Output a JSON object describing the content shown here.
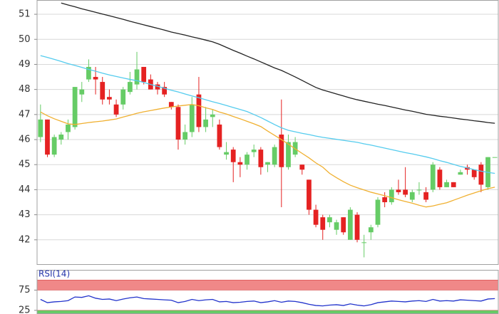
{
  "chart_data": [
    {
      "type": "candlestick",
      "up_color": "#66cc66",
      "down_color": "#e52222",
      "grid": true,
      "ylim": [
        41.0,
        51.57
      ],
      "yticks": [
        42,
        43,
        44,
        45,
        46,
        47,
        48,
        49,
        50,
        51
      ],
      "open": [
        46.1,
        46.8,
        45.4,
        46.0,
        46.3,
        46.5,
        47.8,
        48.4,
        48.5,
        48.3,
        47.7,
        47.4,
        47.4,
        47.9,
        48.2,
        48.9,
        48.4,
        48.2,
        48.1,
        47.5,
        47.3,
        46.0,
        46.3,
        47.8,
        46.5,
        46.9,
        46.6,
        45.4,
        45.6,
        45.1,
        45.0,
        45.5,
        45.6,
        45.0,
        45.0,
        46.2,
        44.9,
        45.4,
        45.0,
        44.4,
        43.2,
        42.9,
        42.7,
        42.4,
        42.9,
        42.0,
        43.0,
        41.9,
        42.3,
        42.6,
        43.7,
        43.5,
        44.0,
        44.0,
        43.6,
        44.0,
        43.9,
        44.0,
        44.8,
        44.1,
        44.3,
        44.6,
        44.9,
        44.8,
        45.0,
        44.1,
        45.3
      ],
      "high": [
        47.4,
        46.8,
        46.2,
        46.3,
        46.8,
        48.1,
        48.3,
        49.2,
        48.9,
        48.5,
        48.0,
        47.6,
        48.1,
        48.7,
        49.5,
        48.9,
        48.6,
        48.3,
        48.3,
        47.5,
        47.4,
        46.6,
        47.7,
        48.5,
        47.3,
        47.2,
        46.8,
        45.9,
        45.7,
        45.3,
        45.5,
        45.8,
        45.7,
        45.1,
        45.8,
        47.6,
        46.2,
        46.1,
        45.0,
        44.4,
        43.4,
        43.0,
        43.0,
        42.8,
        42.9,
        43.3,
        43.1,
        42.2,
        42.6,
        43.7,
        43.9,
        44.1,
        44.4,
        44.9,
        44.0,
        44.3,
        44.1,
        45.1,
        44.9,
        44.4,
        44.3,
        44.8,
        45.0,
        44.8,
        45.1,
        45.3,
        45.3
      ],
      "low": [
        45.9,
        45.3,
        45.3,
        45.8,
        46.0,
        46.4,
        47.5,
        48.3,
        47.8,
        47.4,
        47.4,
        46.9,
        47.2,
        47.8,
        48.0,
        48.2,
        48.0,
        47.8,
        47.7,
        47.2,
        45.6,
        45.8,
        46.1,
        46.3,
        46.3,
        46.5,
        45.6,
        45.2,
        44.3,
        44.5,
        44.8,
        45.3,
        44.6,
        44.7,
        44.9,
        43.3,
        44.8,
        45.3,
        44.6,
        43.0,
        42.5,
        42.0,
        42.5,
        42.2,
        42.2,
        42.0,
        41.9,
        41.3,
        42.0,
        42.5,
        43.3,
        43.4,
        43.8,
        43.7,
        43.5,
        43.8,
        43.5,
        43.9,
        44.0,
        44.1,
        44.1,
        44.6,
        44.6,
        44.4,
        43.9,
        44.0,
        45.3
      ],
      "close": [
        46.8,
        45.4,
        46.1,
        46.2,
        46.6,
        48.1,
        48.0,
        48.9,
        48.4,
        47.6,
        47.6,
        47.0,
        48.0,
        48.3,
        48.8,
        48.3,
        48.0,
        48.0,
        47.8,
        47.3,
        46.0,
        46.3,
        47.4,
        46.5,
        46.8,
        47.0,
        45.7,
        45.5,
        45.1,
        45.0,
        45.4,
        45.6,
        44.9,
        45.1,
        45.7,
        44.9,
        45.9,
        45.9,
        44.8,
        43.2,
        42.6,
        42.4,
        42.9,
        42.7,
        42.3,
        43.2,
        42.0,
        41.9,
        42.5,
        43.6,
        43.5,
        44.0,
        43.9,
        43.8,
        43.9,
        44.0,
        43.6,
        45.0,
        44.1,
        44.3,
        44.1,
        44.7,
        44.8,
        44.5,
        44.2,
        45.3,
        45.3
      ],
      "series": [
        {
          "color": "#222222",
          "values": [
            null,
            null,
            null,
            51.45,
            51.37,
            51.3,
            51.22,
            51.15,
            51.08,
            51.01,
            50.94,
            50.87,
            50.8,
            50.72,
            50.65,
            50.58,
            50.51,
            50.44,
            50.37,
            50.29,
            50.23,
            50.17,
            50.1,
            50.04,
            49.97,
            49.9,
            49.8,
            49.68,
            49.56,
            49.45,
            49.33,
            49.22,
            49.1,
            48.98,
            48.86,
            48.76,
            48.63,
            48.5,
            48.36,
            48.22,
            48.08,
            47.98,
            47.9,
            47.82,
            47.74,
            47.66,
            47.59,
            47.53,
            47.47,
            47.41,
            47.36,
            47.3,
            47.24,
            47.18,
            47.13,
            47.07,
            47.01,
            46.97,
            46.93,
            46.9,
            46.86,
            46.82,
            46.79,
            46.75,
            46.72,
            46.68,
            46.65
          ]
        },
        {
          "color": "#55ccee",
          "values": [
            49.35,
            49.28,
            49.2,
            49.12,
            49.03,
            48.96,
            48.88,
            48.8,
            48.73,
            48.65,
            48.58,
            48.52,
            48.46,
            48.4,
            48.35,
            48.28,
            48.2,
            48.13,
            48.05,
            47.97,
            47.9,
            47.82,
            47.74,
            47.67,
            47.59,
            47.51,
            47.44,
            47.36,
            47.28,
            47.2,
            47.12,
            47.0,
            46.88,
            46.74,
            46.6,
            46.47,
            46.37,
            46.31,
            46.25,
            46.2,
            46.14,
            46.09,
            46.05,
            46.01,
            45.97,
            45.93,
            45.89,
            45.83,
            45.78,
            45.72,
            45.66,
            45.6,
            45.54,
            45.48,
            45.43,
            45.37,
            45.31,
            45.24,
            45.16,
            45.09,
            45.01,
            44.93,
            44.87,
            44.8,
            44.74,
            44.69,
            44.65
          ]
        },
        {
          "color": "#f0b030",
          "values": [
            47.1,
            46.95,
            46.83,
            46.73,
            46.63,
            46.6,
            46.64,
            46.68,
            46.71,
            46.74,
            46.78,
            46.82,
            46.9,
            46.97,
            47.05,
            47.11,
            47.16,
            47.21,
            47.26,
            47.3,
            47.34,
            47.37,
            47.4,
            47.35,
            47.27,
            47.2,
            47.1,
            47.02,
            46.92,
            46.83,
            46.73,
            46.63,
            46.52,
            46.34,
            46.17,
            46.0,
            45.82,
            45.63,
            45.45,
            45.27,
            45.07,
            44.9,
            44.65,
            44.48,
            44.32,
            44.18,
            44.08,
            43.99,
            43.9,
            43.83,
            43.76,
            43.68,
            43.6,
            43.53,
            43.46,
            43.38,
            43.31,
            43.35,
            43.42,
            43.48,
            43.58,
            43.68,
            43.78,
            43.87,
            43.96,
            44.04,
            44.1
          ]
        }
      ]
    },
    {
      "type": "line",
      "title": "RSI(14)",
      "color": "#2233cc",
      "ylim": [
        16,
        125
      ],
      "yticks": [
        25,
        75
      ],
      "bands": [
        {
          "from": 75,
          "to": 100,
          "color": "#f08888"
        },
        {
          "from": 16,
          "to": 25,
          "color": "#66cc66"
        }
      ],
      "values": [
        52,
        44,
        46,
        47,
        49,
        58,
        57,
        61,
        55,
        52,
        53,
        49,
        53,
        56,
        58,
        54,
        53,
        52,
        51,
        50,
        44,
        47,
        52,
        49,
        51,
        52,
        46,
        47,
        44,
        45,
        47,
        48,
        44,
        46,
        49,
        45,
        48,
        47,
        44,
        40,
        37,
        36,
        38,
        39,
        37,
        41,
        38,
        36,
        39,
        44,
        46,
        48,
        47,
        46,
        48,
        49,
        47,
        52,
        48,
        49,
        48,
        51,
        50,
        49,
        48,
        53,
        54
      ]
    }
  ]
}
